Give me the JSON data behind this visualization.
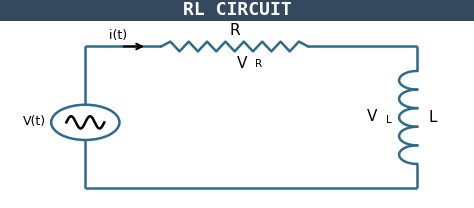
{
  "title": "RL CIRCUIT",
  "title_bg_color": "#34495e",
  "title_text_color": "#ffffff",
  "circuit_color": "#2e6b8a",
  "bg_color": "#ffffff",
  "line_width": 1.8,
  "label_R": "R",
  "label_VR": "V",
  "label_VR_sub": "R",
  "label_VL": "V",
  "label_VL_sub": "L",
  "label_L": "L",
  "label_Vt": "V(t)",
  "label_it": "i(t)"
}
